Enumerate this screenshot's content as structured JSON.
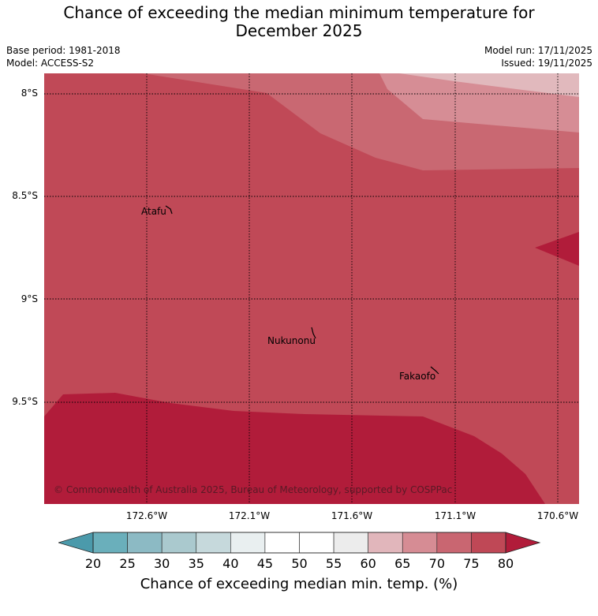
{
  "title_line1": "Chance of exceeding the median minimum temperature for",
  "title_line2": "December 2025",
  "base_period": "Base period: 1981-2018",
  "model": "Model: ACCESS-S2",
  "model_run": "Model run: 17/11/2025",
  "issued": "Issued: 19/11/2025",
  "lat_labels": [
    "8°S",
    "8.5°S",
    "9°S",
    "9.5°S"
  ],
  "lon_labels": [
    "172.6°W",
    "172.1°W",
    "171.6°W",
    "171.1°W",
    "170.6°W"
  ],
  "places": [
    "Atafu",
    "Nukunonu",
    "Fakaofo"
  ],
  "copyright": "© Commonwealth of Australia 2025, Bureau of Meteorology, supported by COSPPac",
  "colorbar": {
    "ticks": [
      "20",
      "25",
      "30",
      "35",
      "40",
      "45",
      "50",
      "55",
      "60",
      "65",
      "70",
      "75",
      "80"
    ],
    "label": "Chance of exceeding median min. temp. (%)",
    "colors": [
      "#4b9aab",
      "#6aafbb",
      "#8cbac4",
      "#aac9ce",
      "#c6d9dc",
      "#e9eff0",
      "#ffffff",
      "#ffffff",
      "#ececec",
      "#e1b6bb",
      "#d68c94",
      "#c96671",
      "#bf4856",
      "#b11c3a"
    ]
  },
  "map_colors": {
    "c55_60": "#e1b9bd",
    "c65_70": "#d68d95",
    "c70_75": "#c96872",
    "c75_80": "#c04957",
    "c80plus": "#b11c3a"
  }
}
